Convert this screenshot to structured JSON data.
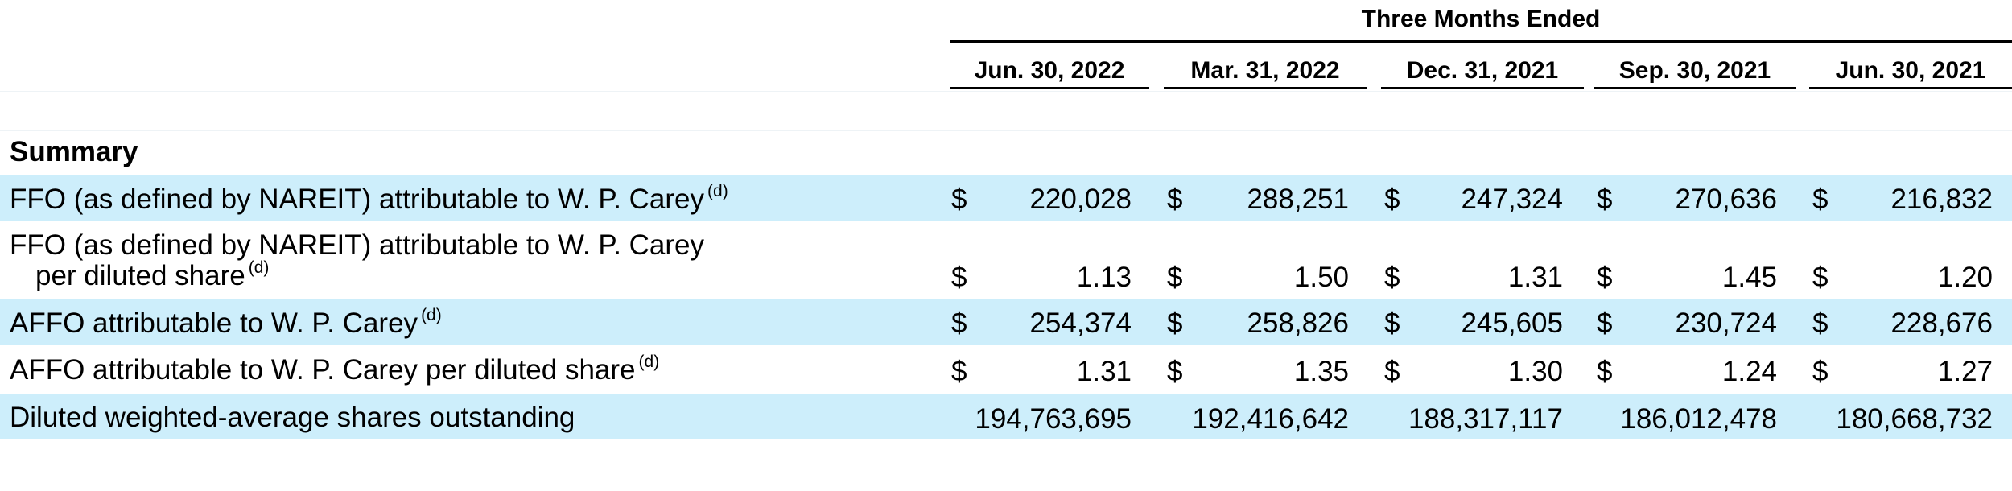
{
  "header": {
    "group_label": "Three Months Ended",
    "periods": [
      "Jun. 30, 2022",
      "Mar. 31, 2022",
      "Dec. 31, 2021",
      "Sep. 30, 2021",
      "Jun. 30, 2021"
    ]
  },
  "section_title": "Summary",
  "rows": [
    {
      "label": "FFO (as defined by NAREIT) attributable to W. P. Carey",
      "note": "(d)",
      "currency": "$",
      "values": [
        "220,028",
        "288,251",
        "247,324",
        "270,636",
        "216,832"
      ]
    },
    {
      "label_line1": "FFO (as defined by NAREIT) attributable to W. P. Carey",
      "label_line2": "per diluted share",
      "note": "(d)",
      "currency": "$",
      "values": [
        "1.13",
        "1.50",
        "1.31",
        "1.45",
        "1.20"
      ]
    },
    {
      "label": "AFFO attributable to W. P. Carey",
      "note": "(d)",
      "currency": "$",
      "values": [
        "254,374",
        "258,826",
        "245,605",
        "230,724",
        "228,676"
      ]
    },
    {
      "label": "AFFO attributable to W. P. Carey per diluted share",
      "note": "(d)",
      "currency": "$",
      "values": [
        "1.31",
        "1.35",
        "1.30",
        "1.24",
        "1.27"
      ]
    },
    {
      "label": "Diluted weighted-average shares outstanding",
      "values": [
        "194,763,695",
        "192,416,642",
        "188,317,117",
        "186,012,478",
        "180,668,732"
      ]
    }
  ]
}
